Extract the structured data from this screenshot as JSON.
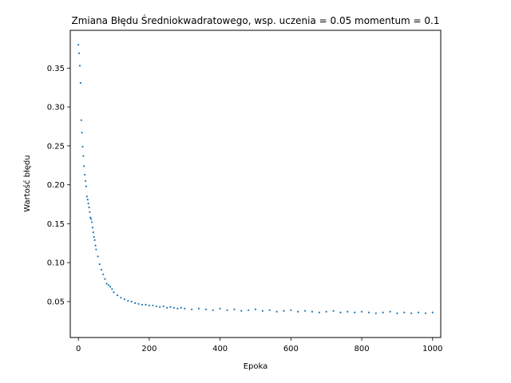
{
  "chart_data": {
    "type": "scatter",
    "title": "Zmiana Błędu Średniokwadratowego, wsp. uczenia = 0.05 momentum = 0.1",
    "xlabel": "Epoka",
    "ylabel": "Wartość błędu",
    "xlim": [
      -23,
      1023
    ],
    "ylim": [
      0.0038,
      0.3985
    ],
    "xticks": [
      0,
      200,
      400,
      600,
      800,
      1000
    ],
    "xtick_labels": [
      "0",
      "200",
      "400",
      "600",
      "800",
      "1000"
    ],
    "yticks": [
      0.05,
      0.1,
      0.15,
      0.2,
      0.25,
      0.3,
      0.35
    ],
    "ytick_labels": [
      "0.05",
      "0.10",
      "0.15",
      "0.20",
      "0.25",
      "0.30",
      "0.35"
    ],
    "grid": false,
    "marker_color": "#1f77b4",
    "series": [
      {
        "x": [
          0,
          2,
          4,
          6,
          8,
          10,
          12,
          14,
          16,
          18,
          20,
          22,
          24,
          26,
          28,
          30,
          32,
          34,
          36,
          38,
          40,
          42,
          44,
          46,
          48,
          50,
          55,
          60,
          65,
          70,
          75,
          80,
          85,
          90,
          95,
          100,
          110,
          120,
          130,
          140,
          150,
          160,
          170,
          180,
          190,
          200,
          210,
          220,
          230,
          240,
          250,
          260,
          270,
          280,
          290,
          300,
          320,
          340,
          360,
          380,
          400,
          420,
          440,
          460,
          480,
          500,
          520,
          540,
          560,
          580,
          600,
          620,
          640,
          660,
          680,
          700,
          720,
          740,
          760,
          780,
          800,
          820,
          840,
          860,
          880,
          900,
          920,
          940,
          960,
          980,
          1000
        ],
        "y": [
          0.38,
          0.369,
          0.353,
          0.331,
          0.283,
          0.267,
          0.249,
          0.237,
          0.224,
          0.213,
          0.205,
          0.198,
          0.185,
          0.181,
          0.176,
          0.171,
          0.165,
          0.158,
          0.156,
          0.152,
          0.145,
          0.139,
          0.133,
          0.129,
          0.122,
          0.117,
          0.108,
          0.098,
          0.091,
          0.085,
          0.079,
          0.073,
          0.071,
          0.069,
          0.066,
          0.062,
          0.058,
          0.055,
          0.053,
          0.051,
          0.05,
          0.048,
          0.047,
          0.046,
          0.046,
          0.045,
          0.045,
          0.044,
          0.043,
          0.044,
          0.042,
          0.043,
          0.042,
          0.041,
          0.042,
          0.041,
          0.04,
          0.041,
          0.04,
          0.039,
          0.041,
          0.039,
          0.04,
          0.038,
          0.039,
          0.04,
          0.038,
          0.039,
          0.037,
          0.038,
          0.039,
          0.037,
          0.038,
          0.037,
          0.036,
          0.037,
          0.038,
          0.036,
          0.037,
          0.036,
          0.037,
          0.036,
          0.035,
          0.036,
          0.037,
          0.035,
          0.036,
          0.035,
          0.036,
          0.035,
          0.036
        ]
      }
    ]
  }
}
